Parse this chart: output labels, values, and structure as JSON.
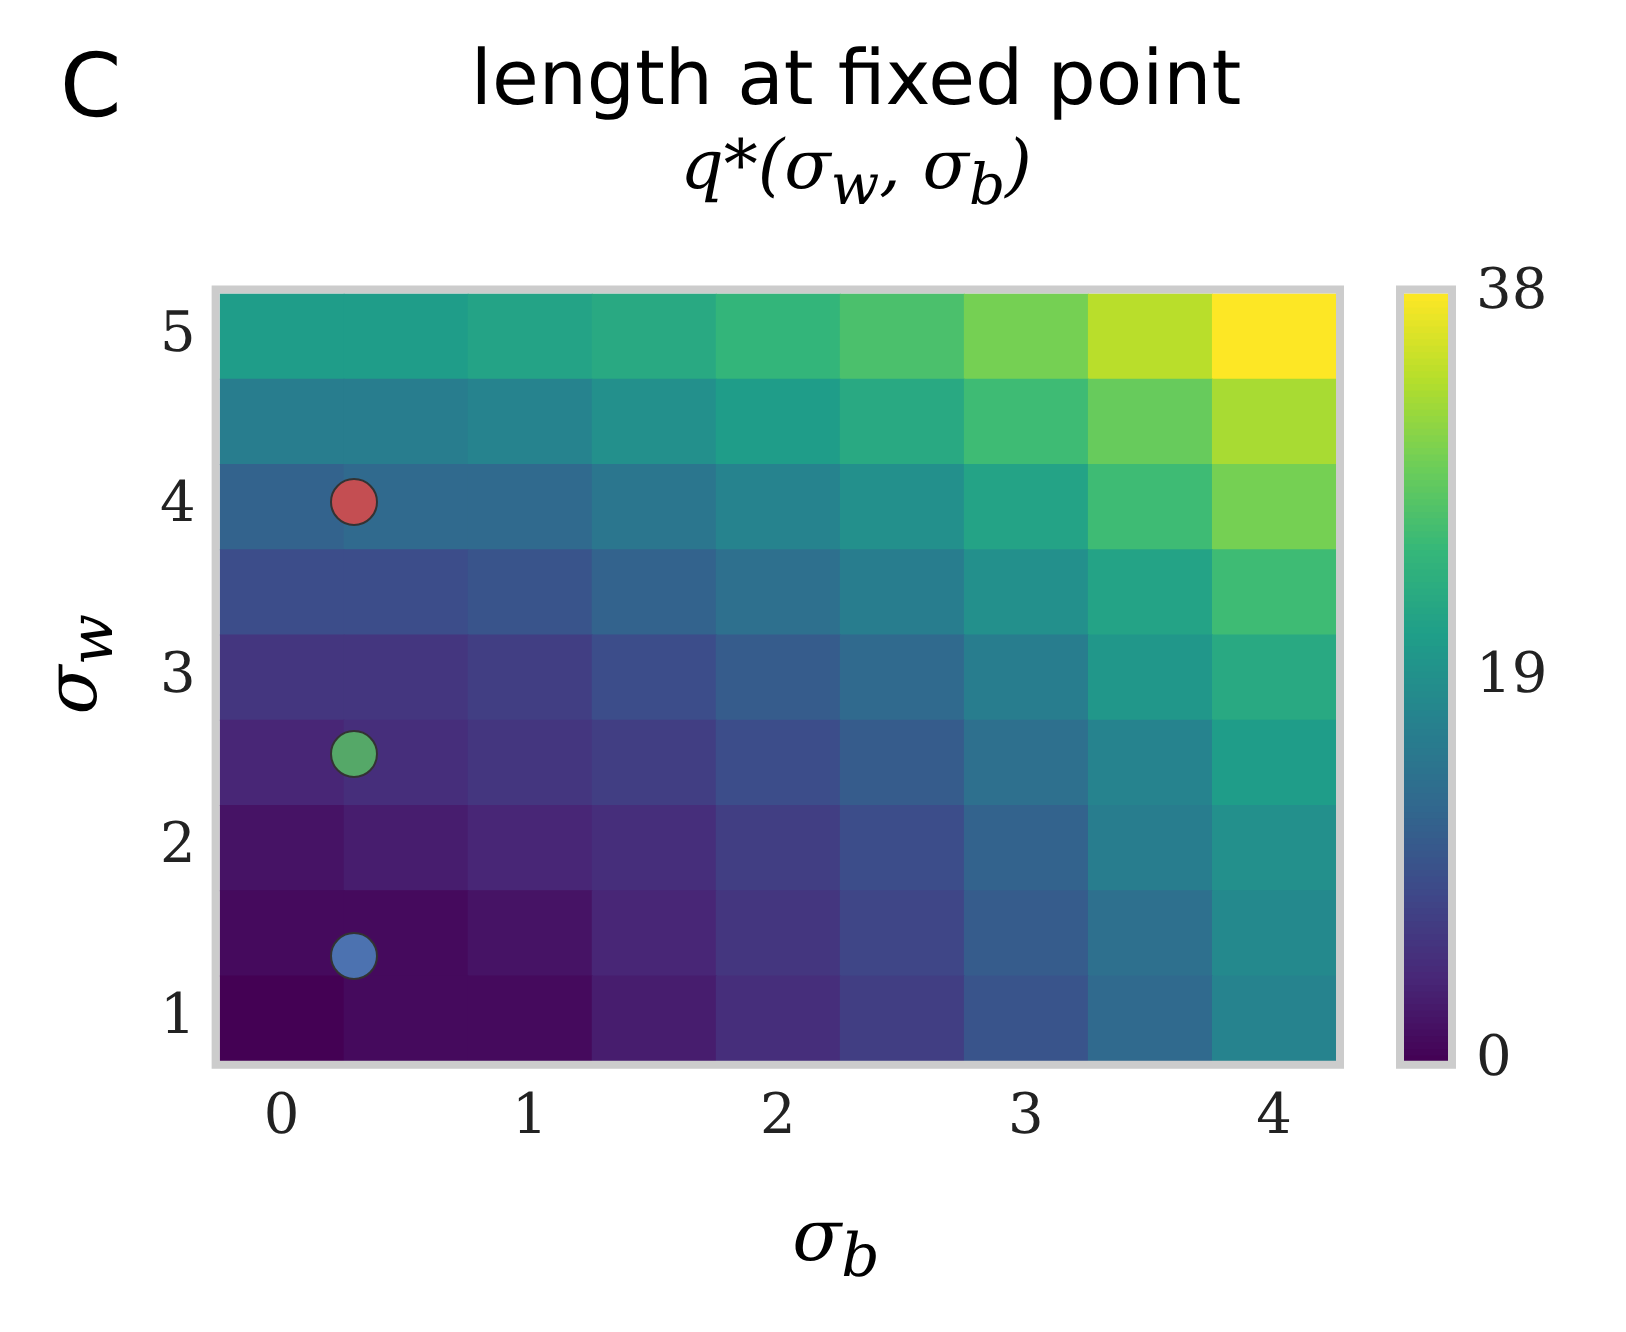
{
  "chart_data": {
    "type": "heatmap",
    "title": "length at fixed point",
    "subtitle": "q*(σ$_{w}$, σ$_{b}$)",
    "xlabel": "σ$_{b}$",
    "ylabel": "σ$_{w}$",
    "annotations": [
      "C"
    ],
    "categories": [
      "0",
      null,
      "1",
      null,
      "2",
      null,
      "3",
      null,
      "4"
    ],
    "y_categories": [
      "5",
      null,
      "4",
      null,
      "3",
      null,
      "2",
      null,
      "1"
    ],
    "cells": [
      [
        21,
        21,
        22,
        23,
        25,
        27,
        30,
        34,
        38
      ],
      [
        16,
        16,
        17,
        19,
        21,
        23,
        26,
        29,
        33
      ],
      [
        12,
        13,
        13,
        15,
        17,
        19,
        22,
        26,
        30
      ],
      [
        9,
        9,
        10,
        12,
        14,
        16,
        19,
        22,
        26
      ],
      [
        6,
        6,
        7,
        9,
        11,
        13,
        16,
        20,
        23
      ],
      [
        4,
        5,
        6,
        7,
        9,
        11,
        14,
        17,
        21
      ],
      [
        2,
        3,
        4,
        5,
        7,
        9,
        12,
        16,
        19
      ],
      [
        1,
        1,
        2,
        4,
        6,
        8,
        11,
        14,
        18
      ],
      [
        0,
        1,
        1,
        3,
        5,
        7,
        10,
        13,
        17
      ]
    ],
    "clim": [
      0,
      38
    ],
    "cticks": [
      0,
      19,
      38
    ]
  }
}
